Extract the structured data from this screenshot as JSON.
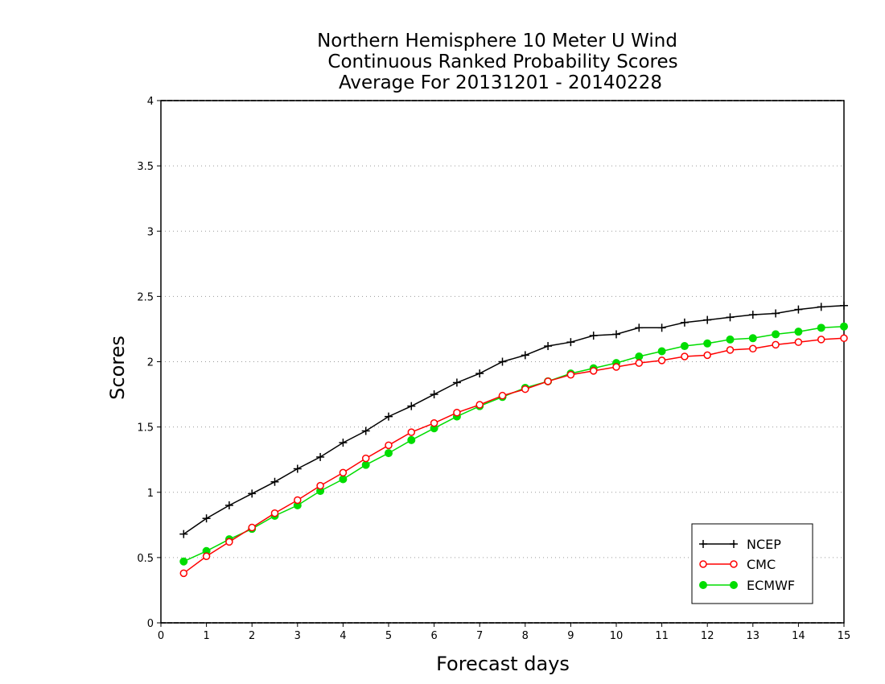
{
  "chart_data": {
    "type": "line",
    "title_lines": [
      "Northern Hemisphere 10 Meter U Wind",
      "Continuous Ranked Probability Scores",
      "Average For 20131201 - 20140228"
    ],
    "xlabel": "Forecast days",
    "ylabel": "Scores",
    "xlim": [
      0,
      15
    ],
    "ylim": [
      0,
      4
    ],
    "x_ticks": [
      "0",
      "1",
      "2",
      "3",
      "4",
      "5",
      "6",
      "7",
      "8",
      "9",
      "10",
      "11",
      "12",
      "13",
      "14",
      "15"
    ],
    "y_ticks": [
      "0",
      "0.5",
      "1",
      "1.5",
      "2",
      "2.5",
      "3",
      "3.5",
      "4"
    ],
    "grid": "horizontal dotted",
    "legend_position": "bottom-right",
    "x": [
      0.5,
      1,
      1.5,
      2,
      2.5,
      3,
      3.5,
      4,
      4.5,
      5,
      5.5,
      6,
      6.5,
      7,
      7.5,
      8,
      8.5,
      9,
      9.5,
      10,
      10.5,
      11,
      11.5,
      12,
      12.5,
      13,
      13.5,
      14,
      14.5,
      15
    ],
    "series": [
      {
        "name": "NCEP",
        "color": "#000000",
        "marker": "plus",
        "values": [
          0.68,
          0.8,
          0.9,
          0.99,
          1.08,
          1.18,
          1.27,
          1.38,
          1.47,
          1.58,
          1.66,
          1.75,
          1.84,
          1.91,
          2.0,
          2.05,
          2.12,
          2.15,
          2.2,
          2.21,
          2.26,
          2.26,
          2.3,
          2.32,
          2.34,
          2.36,
          2.37,
          2.4,
          2.42,
          2.43
        ]
      },
      {
        "name": "CMC",
        "color": "#ff0000",
        "marker": "open-circle",
        "values": [
          0.38,
          0.51,
          0.62,
          0.73,
          0.84,
          0.94,
          1.05,
          1.15,
          1.26,
          1.36,
          1.46,
          1.53,
          1.61,
          1.67,
          1.74,
          1.79,
          1.85,
          1.9,
          1.93,
          1.96,
          1.99,
          2.01,
          2.04,
          2.05,
          2.09,
          2.1,
          2.13,
          2.15,
          2.17,
          2.18
        ]
      },
      {
        "name": "ECMWF",
        "color": "#00dd00",
        "marker": "filled-circle",
        "values": [
          0.47,
          0.55,
          0.64,
          0.72,
          0.82,
          0.9,
          1.01,
          1.1,
          1.21,
          1.3,
          1.4,
          1.49,
          1.58,
          1.66,
          1.73,
          1.8,
          1.85,
          1.91,
          1.95,
          1.99,
          2.04,
          2.08,
          2.12,
          2.14,
          2.17,
          2.18,
          2.21,
          2.23,
          2.26,
          2.27
        ]
      }
    ]
  }
}
